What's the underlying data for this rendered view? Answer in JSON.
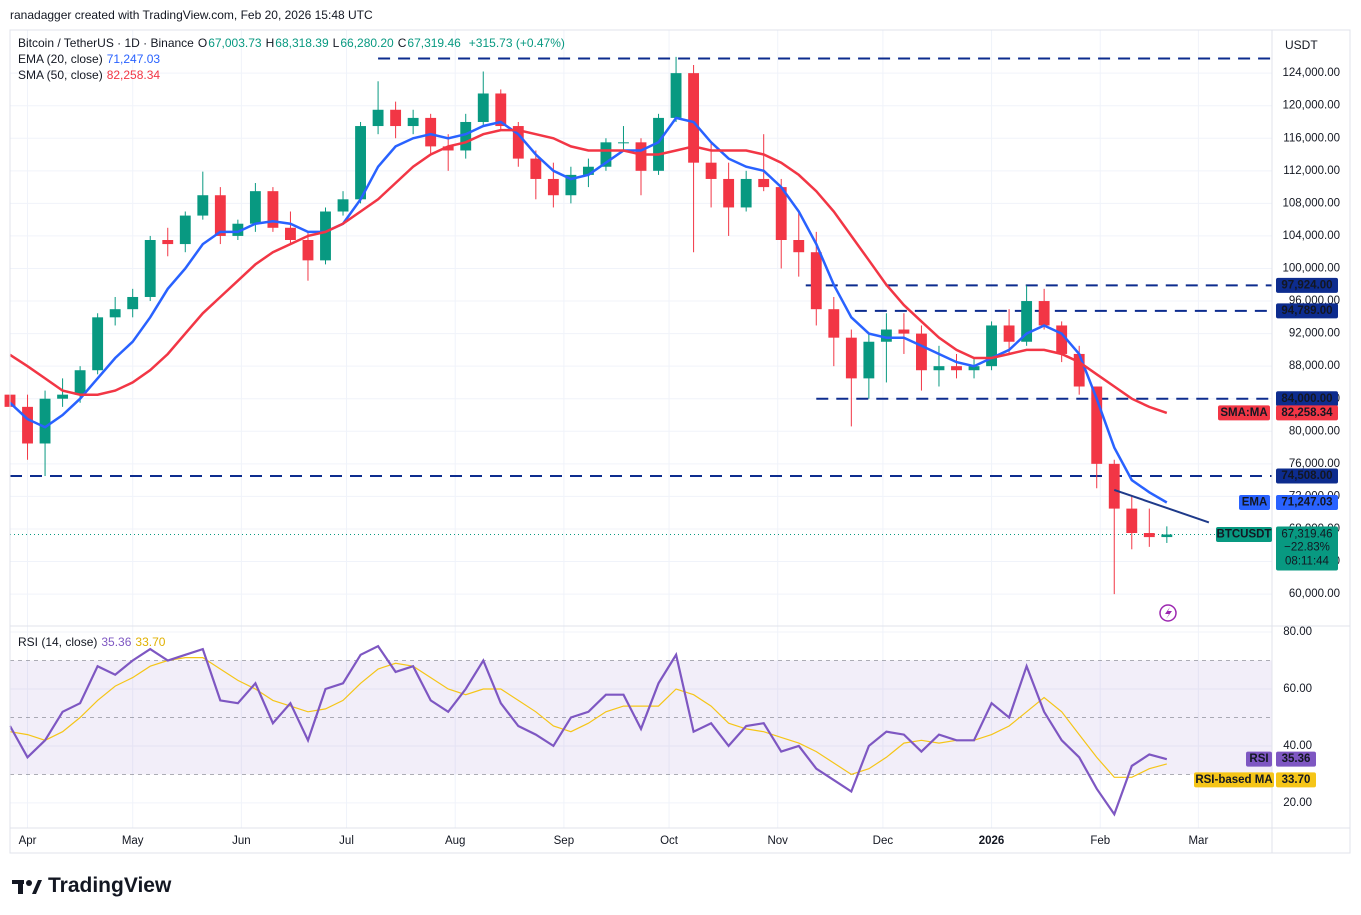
{
  "header": {
    "credit": "ranadagger created with TradingView.com, Feb 20, 2026 15:48 UTC",
    "brand": "TradingView"
  },
  "chart_data": {
    "type": "candlestick",
    "title": "Bitcoin / TetherUS · 1D · Binance",
    "ohlc_labels": [
      {
        "label": "O",
        "value": "67,003.73"
      },
      {
        "label": "H",
        "value": "68,318.39"
      },
      {
        "label": "L",
        "value": "66,280.20"
      },
      {
        "label": "C",
        "value": "67,319.46"
      }
    ],
    "change": "+315.73 (+0.47%)",
    "y_unit": "USDT",
    "up_color": "#089981",
    "down_color": "#f23645",
    "x": [
      -5,
      0,
      5,
      10,
      15,
      20,
      25,
      30,
      35,
      40,
      45,
      50,
      55,
      60,
      65,
      70,
      75,
      80,
      85,
      90,
      95,
      100,
      105,
      110,
      115,
      120,
      125,
      130,
      135,
      140,
      145,
      150,
      155,
      160,
      165,
      170,
      175,
      180,
      185,
      190,
      195,
      200,
      205,
      210,
      215,
      220,
      225,
      230,
      235,
      240,
      245,
      250,
      255,
      260,
      265,
      270,
      275,
      280,
      285,
      290,
      295,
      300,
      305,
      310,
      315,
      320,
      325
    ],
    "open": [
      84500,
      83000,
      78500,
      84000,
      84500,
      87500,
      94000,
      95000,
      96500,
      103500,
      103000,
      106500,
      109000,
      104000,
      105500,
      109500,
      105000,
      103500,
      101000,
      107000,
      108500,
      117500,
      119500,
      117500,
      118500,
      115000,
      114500,
      118000,
      121500,
      117500,
      113500,
      111000,
      109000,
      111500,
      112500,
      115500,
      115500,
      112000,
      118500,
      124000,
      113000,
      111000,
      107500,
      111000,
      110000,
      103500,
      102000,
      95000,
      91500,
      86500,
      91000,
      92500,
      92000,
      87500,
      88000,
      87500,
      88000,
      93000,
      91000,
      96000,
      93000,
      89500,
      85500,
      76000,
      70500,
      67500,
      67003.73
    ],
    "high": [
      86000,
      84500,
      85000,
      86500,
      88000,
      94500,
      96500,
      97500,
      104000,
      105000,
      107000,
      111900,
      110000,
      106000,
      110500,
      110000,
      107000,
      104500,
      107500,
      109500,
      118000,
      123000,
      120500,
      119500,
      119000,
      116500,
      119000,
      124200,
      122000,
      118000,
      114500,
      113000,
      112500,
      113500,
      116000,
      117500,
      116000,
      119000,
      126000,
      125000,
      115500,
      113000,
      112000,
      116500,
      111000,
      107000,
      104500,
      96500,
      92500,
      92000,
      94500,
      94500,
      93000,
      90500,
      89500,
      89000,
      93500,
      95000,
      97900,
      97500,
      93500,
      90500,
      85500,
      76500,
      72000,
      70500,
      68318.39
    ],
    "low": [
      81500,
      76500,
      74500,
      83000,
      83500,
      87000,
      93000,
      94000,
      96000,
      101500,
      102000,
      106000,
      103000,
      103500,
      104500,
      104500,
      103000,
      98500,
      100500,
      106500,
      108000,
      116500,
      116000,
      116500,
      114000,
      112000,
      113500,
      117500,
      117000,
      112500,
      108500,
      107500,
      108000,
      110000,
      112000,
      114500,
      109000,
      111500,
      118000,
      102000,
      107500,
      104000,
      107000,
      109500,
      100000,
      99000,
      93000,
      88000,
      80600,
      84000,
      86000,
      89500,
      85000,
      85500,
      86500,
      86500,
      87500,
      89500,
      90500,
      92500,
      88500,
      84500,
      73000,
      60000,
      65500,
      65800,
      66280.2
    ],
    "close": [
      83000,
      78500,
      84000,
      84500,
      87500,
      94000,
      95000,
      96500,
      103500,
      103000,
      106500,
      109000,
      104000,
      105500,
      109500,
      105000,
      103500,
      101000,
      107000,
      108500,
      117500,
      119500,
      117500,
      118500,
      115000,
      114500,
      118000,
      121500,
      117500,
      113500,
      111000,
      109000,
      111500,
      112500,
      115500,
      115500,
      112000,
      118500,
      124000,
      113000,
      111000,
      107500,
      111000,
      110000,
      103500,
      102000,
      95000,
      91500,
      86500,
      91000,
      92500,
      92000,
      87500,
      88000,
      87500,
      88000,
      93000,
      91000,
      96000,
      93000,
      89500,
      85500,
      76000,
      70500,
      67500,
      67000,
      67319.46
    ],
    "xlim": [
      -5,
      355
    ],
    "xticks": [
      {
        "value": 0,
        "label": "Apr"
      },
      {
        "value": 30,
        "label": "May"
      },
      {
        "value": 61,
        "label": "Jun"
      },
      {
        "value": 91,
        "label": "Jul"
      },
      {
        "value": 122,
        "label": "Aug"
      },
      {
        "value": 153,
        "label": "Sep"
      },
      {
        "value": 183,
        "label": "Oct"
      },
      {
        "value": 214,
        "label": "Nov"
      },
      {
        "value": 244,
        "label": "Dec"
      },
      {
        "value": 275,
        "label": "2026"
      },
      {
        "value": 306,
        "label": "Feb"
      },
      {
        "value": 334,
        "label": "Mar"
      }
    ],
    "ylim": [
      56200,
      129300
    ],
    "yticks": [
      {
        "value": 60000,
        "label": "60,000.00"
      },
      {
        "value": 64000,
        "label": "64,000.00"
      },
      {
        "value": 68000,
        "label": "68,000.00"
      },
      {
        "value": 72000,
        "label": "72,000.00"
      },
      {
        "value": 76000,
        "label": "76,000.00"
      },
      {
        "value": 80000,
        "label": "80,000.00"
      },
      {
        "value": 84000,
        "label": "84,000.00"
      },
      {
        "value": 88000,
        "label": "88,000.00"
      },
      {
        "value": 92000,
        "label": "92,000.00"
      },
      {
        "value": 96000,
        "label": "96,000.00"
      },
      {
        "value": 100000,
        "label": "100,000.00"
      },
      {
        "value": 104000,
        "label": "104,000.00"
      },
      {
        "value": 108000,
        "label": "108,000.00"
      },
      {
        "value": 112000,
        "label": "112,000.00"
      },
      {
        "value": 116000,
        "label": "116,000.00"
      },
      {
        "value": 120000,
        "label": "120,000.00"
      },
      {
        "value": 124000,
        "label": "124,000.00"
      }
    ],
    "grid": true,
    "series": [
      {
        "name": "EMA (20, close)",
        "badge": "EMA",
        "color": "#2962ff",
        "last": {
          "value": 71247.03,
          "label": "71,247.03"
        },
        "values": [
          83500,
          81500,
          80500,
          82000,
          84000,
          86500,
          89000,
          91000,
          94000,
          97500,
          100000,
          103000,
          104500,
          104500,
          105500,
          105800,
          105500,
          104500,
          104500,
          105500,
          108500,
          112500,
          115000,
          116000,
          116500,
          116000,
          116500,
          117500,
          118000,
          116500,
          114000,
          112000,
          111000,
          111500,
          113000,
          114500,
          114500,
          115500,
          118500,
          118000,
          115500,
          113500,
          112500,
          112000,
          110000,
          107000,
          103000,
          98000,
          94000,
          92000,
          91500,
          91500,
          90500,
          89500,
          88500,
          88000,
          89000,
          90000,
          92000,
          93000,
          92000,
          89500,
          84000,
          78000,
          74000,
          72500,
          71247.03
        ]
      },
      {
        "name": "SMA (50, close)",
        "badge": "SMA:MA",
        "color": "#f23645",
        "last": {
          "value": 82258.34,
          "label": "82,258.34"
        },
        "values": [
          89400,
          88000,
          86500,
          85000,
          84500,
          84500,
          85000,
          86000,
          87500,
          89500,
          92000,
          94500,
          96500,
          98500,
          100500,
          102000,
          103000,
          104000,
          104500,
          105500,
          107000,
          108500,
          110500,
          112500,
          114000,
          115000,
          115500,
          116500,
          117000,
          117000,
          116500,
          116000,
          115000,
          114500,
          114500,
          114500,
          114000,
          114000,
          114500,
          115000,
          114500,
          114500,
          114500,
          114000,
          113000,
          111500,
          109500,
          107000,
          104000,
          101000,
          98000,
          95500,
          93500,
          91500,
          90000,
          89000,
          89000,
          89500,
          90000,
          90000,
          89500,
          88500,
          87000,
          85500,
          84000,
          83000,
          82258.34
        ]
      }
    ],
    "levels": [
      {
        "value": 125800
      },
      {
        "value": 97924,
        "label": "97,924.00"
      },
      {
        "value": 94789,
        "label": "94,789.00"
      },
      {
        "value": 84000,
        "label": "84,000.00"
      },
      {
        "value": 74508,
        "label": "74,508.00"
      }
    ],
    "level_color": "#0d2c8e",
    "trendline": {
      "x": [
        310,
        337
      ],
      "y": [
        72800,
        68800
      ],
      "color": "#1e3a8a"
    },
    "last_price": {
      "name": "BTCUSDT",
      "value": 67319.46,
      "label": "67,319.46",
      "change": "−22.83%",
      "countdown": "08:11:44",
      "color": "#089981"
    },
    "rsi": {
      "name": "RSI (14, close)",
      "badge": "RSI",
      "color": "#7e57c2",
      "last": {
        "value": 35.36,
        "label": "35.36"
      },
      "values": [
        47,
        36,
        42,
        52,
        55,
        68,
        65,
        70,
        74,
        70,
        72,
        74,
        56,
        55,
        62,
        48,
        55,
        42,
        60,
        62,
        72,
        75,
        66,
        68,
        56,
        52,
        60,
        70,
        55,
        47,
        44,
        40,
        50,
        52,
        58,
        58,
        46,
        62,
        72,
        45,
        48,
        40,
        47,
        48,
        38,
        40,
        32,
        28,
        24,
        40,
        45,
        44,
        38,
        44,
        42,
        42,
        55,
        50,
        68,
        52,
        42,
        36,
        25,
        16,
        33,
        37,
        35.36
      ],
      "ma": {
        "name": "RSI-based MA",
        "color": "#f5c518",
        "last": {
          "value": 33.7,
          "label": "33.70"
        },
        "values": [
          45,
          44,
          42,
          45,
          50,
          56,
          61,
          64,
          68,
          70,
          71,
          71,
          67,
          63,
          60,
          56,
          54,
          52,
          53,
          56,
          62,
          67,
          69,
          68,
          64,
          60,
          58,
          60,
          60,
          56,
          52,
          47,
          45,
          48,
          52,
          54,
          54,
          54,
          60,
          58,
          54,
          48,
          46,
          45,
          43,
          41,
          38,
          34,
          30,
          32,
          36,
          41,
          42,
          41,
          42,
          42,
          44,
          47,
          52,
          57,
          52,
          44,
          36,
          29,
          29,
          32,
          33.7
        ]
      },
      "ylim": [
        11.2,
        81.4
      ],
      "yticks": [
        {
          "value": 20,
          "label": "20.00"
        },
        {
          "value": 40,
          "label": "40.00"
        },
        {
          "value": 60,
          "label": "60.00"
        },
        {
          "value": 80,
          "label": "80.00"
        }
      ],
      "bands": [
        70,
        50,
        30
      ]
    }
  }
}
